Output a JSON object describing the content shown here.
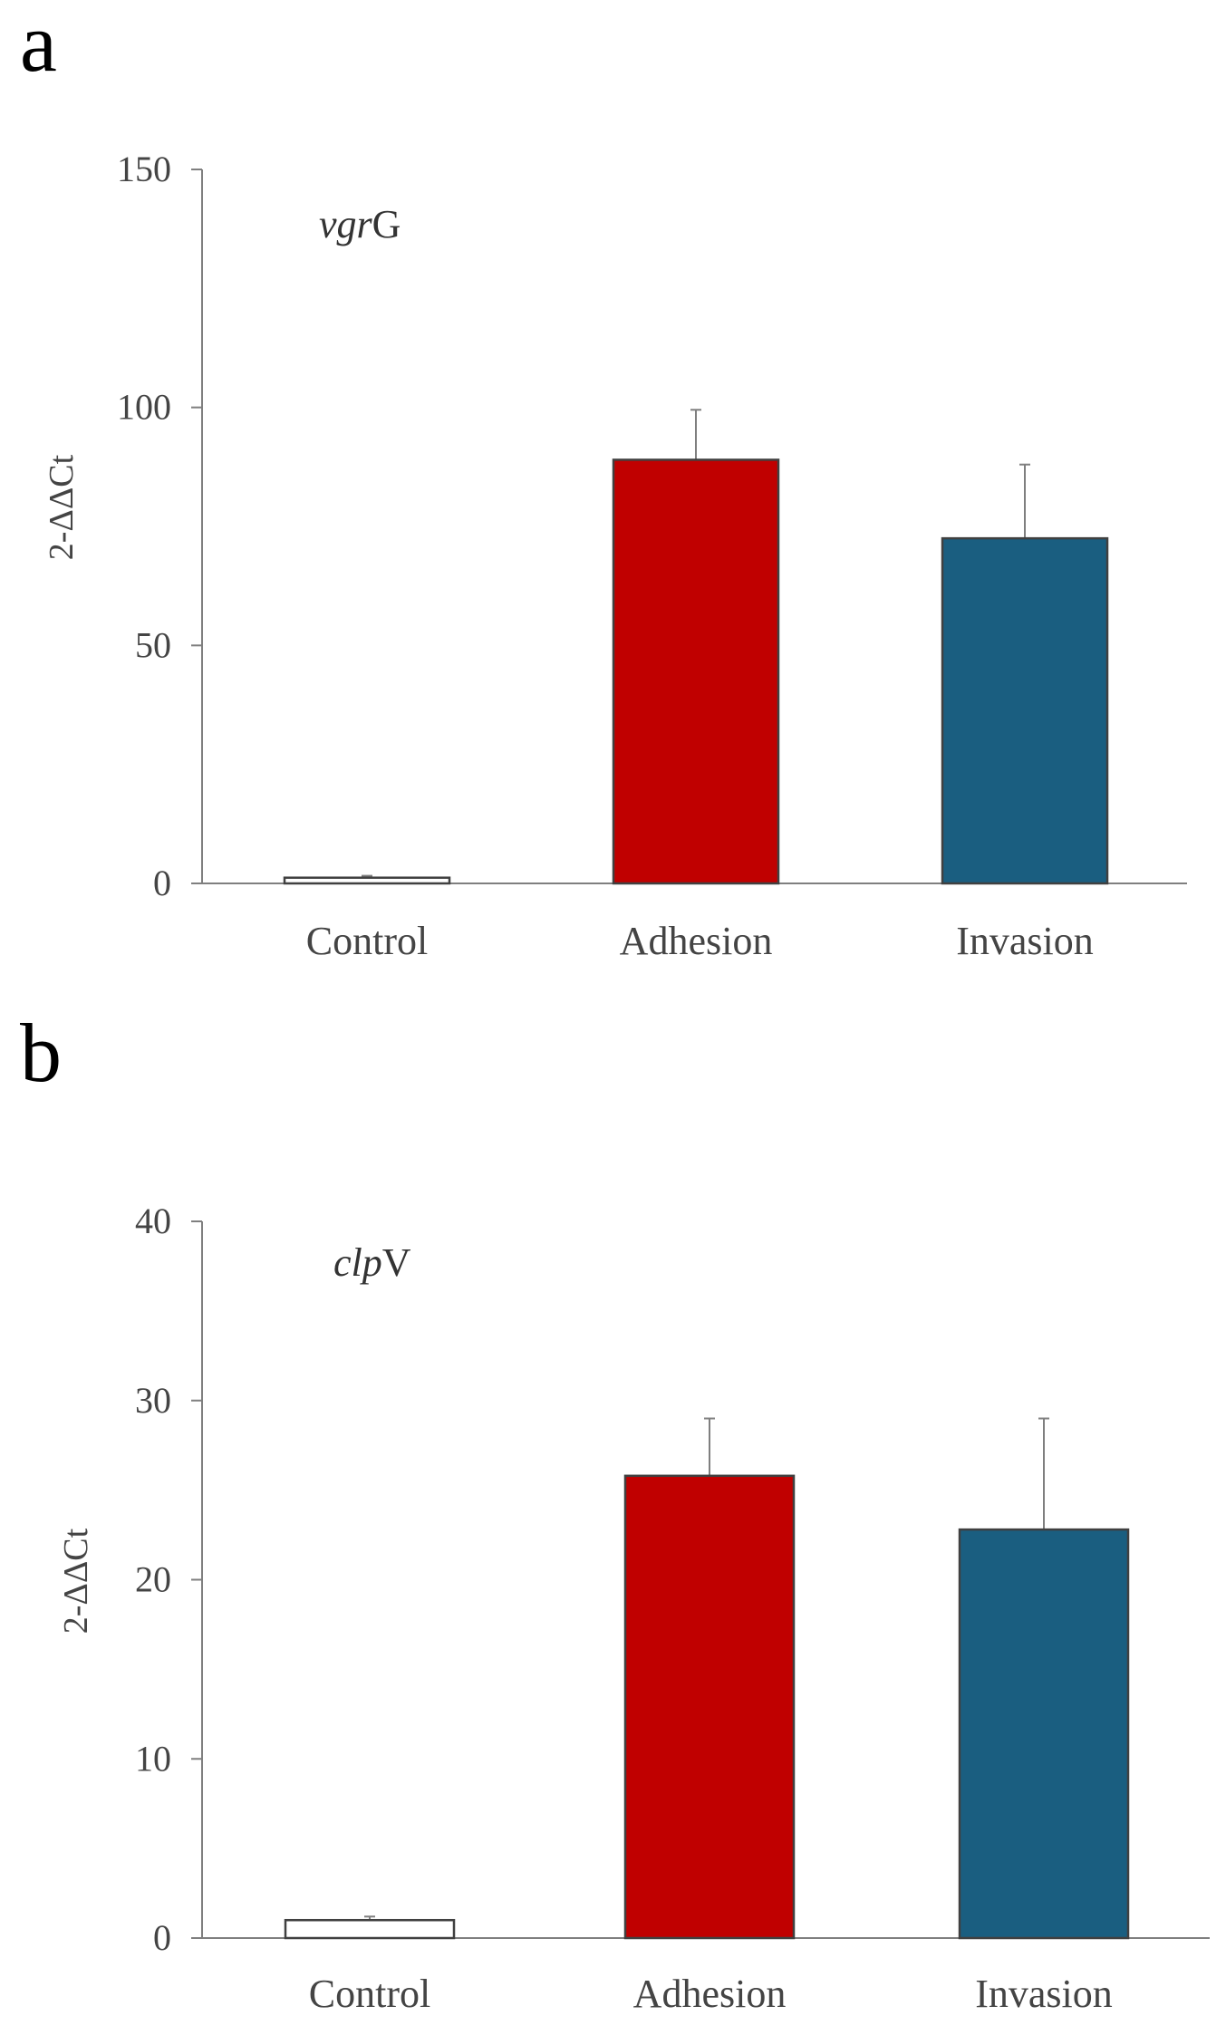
{
  "chart_data": [
    {
      "type": "bar",
      "panel_label": "a",
      "gene_prefix": "vgr",
      "gene_suffix": "G",
      "categories": [
        "Control",
        "Adhesion",
        "Invasion"
      ],
      "values": [
        1.2,
        89,
        72.5
      ],
      "errors": [
        0.4,
        10.5,
        15.5
      ],
      "ylabel": "2-ΔΔCt",
      "ylim": [
        0,
        150
      ],
      "yticks": [
        0,
        50,
        100,
        150
      ],
      "grid": false,
      "colors": [
        "#ffffff",
        "#c00000",
        "#1a5e80"
      ]
    },
    {
      "type": "bar",
      "panel_label": "b",
      "gene_prefix": "clp",
      "gene_suffix": "V",
      "categories": [
        "Control",
        "Adhesion",
        "Invasion"
      ],
      "values": [
        1.0,
        25.8,
        22.8
      ],
      "errors": [
        0.2,
        3.2,
        6.2
      ],
      "ylabel": "2-ΔΔCt",
      "ylim": [
        0,
        40
      ],
      "yticks": [
        0,
        10,
        20,
        30,
        40
      ],
      "grid": false,
      "colors": [
        "#ffffff",
        "#c00000",
        "#1a5e80"
      ]
    }
  ]
}
